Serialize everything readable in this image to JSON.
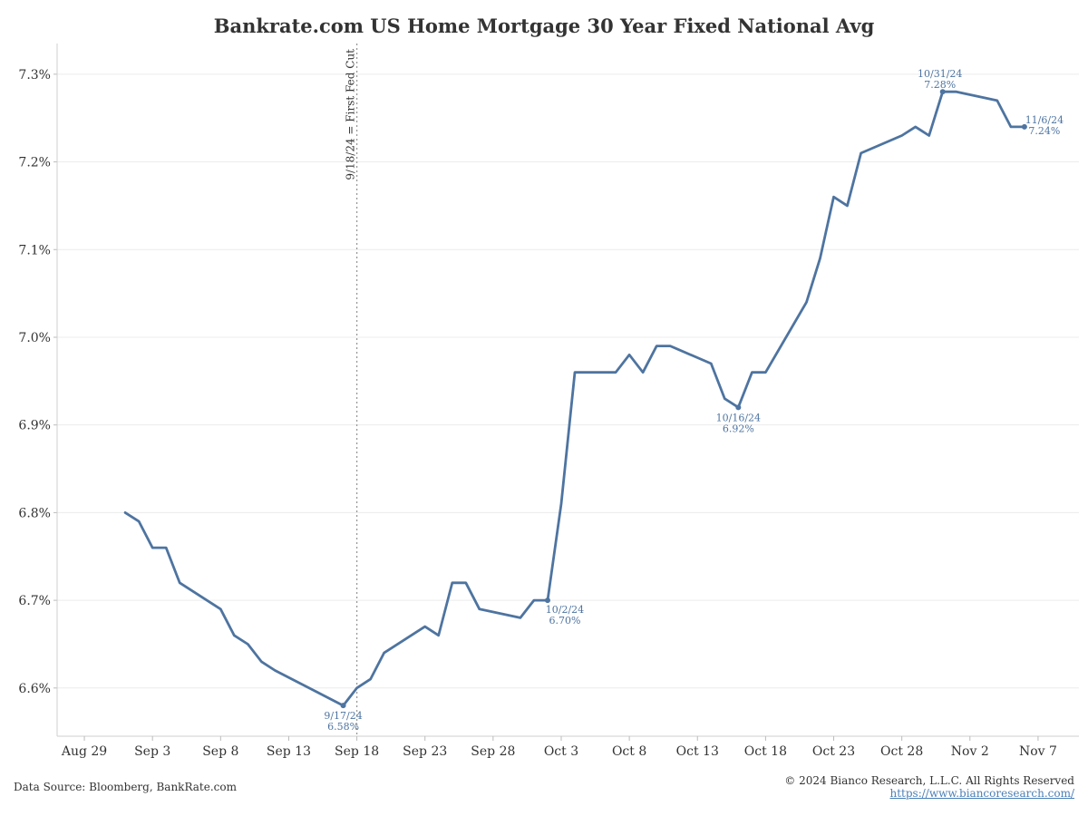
{
  "chart_data": {
    "type": "line",
    "title": "Bankrate.com US Home Mortgage 30 Year Fixed National Avg",
    "xlabel": "",
    "ylabel": "",
    "ylim": [
      6.545,
      7.335
    ],
    "xlim": [
      "2024-08-27",
      "2024-11-10"
    ],
    "grid": true,
    "line_color": "#4e74a0",
    "y_ticks": [
      6.6,
      6.7,
      6.8,
      6.9,
      7.0,
      7.1,
      7.2,
      7.3
    ],
    "y_tick_labels": [
      "6.6%",
      "6.7%",
      "6.8%",
      "6.9%",
      "7.0%",
      "7.1%",
      "7.2%",
      "7.3%"
    ],
    "x_ticks": [
      {
        "date": "2024-08-29",
        "label": "Aug 29"
      },
      {
        "date": "2024-09-03",
        "label": "Sep 3"
      },
      {
        "date": "2024-09-08",
        "label": "Sep 8"
      },
      {
        "date": "2024-09-13",
        "label": "Sep 13"
      },
      {
        "date": "2024-09-18",
        "label": "Sep 18"
      },
      {
        "date": "2024-09-23",
        "label": "Sep 23"
      },
      {
        "date": "2024-09-28",
        "label": "Sep 28"
      },
      {
        "date": "2024-10-03",
        "label": "Oct 3"
      },
      {
        "date": "2024-10-08",
        "label": "Oct 8"
      },
      {
        "date": "2024-10-13",
        "label": "Oct 13"
      },
      {
        "date": "2024-10-18",
        "label": "Oct 18"
      },
      {
        "date": "2024-10-23",
        "label": "Oct 23"
      },
      {
        "date": "2024-10-28",
        "label": "Oct 28"
      },
      {
        "date": "2024-11-02",
        "label": "Nov 2"
      },
      {
        "date": "2024-11-07",
        "label": "Nov 7"
      }
    ],
    "series": [
      {
        "x": [
          "2024-09-01",
          "2024-09-02",
          "2024-09-03",
          "2024-09-04",
          "2024-09-05",
          "2024-09-08",
          "2024-09-09",
          "2024-09-10",
          "2024-09-11",
          "2024-09-12",
          "2024-09-17",
          "2024-09-18",
          "2024-09-19",
          "2024-09-20",
          "2024-09-23",
          "2024-09-24",
          "2024-09-25",
          "2024-09-26",
          "2024-09-27",
          "2024-09-30",
          "2024-10-01",
          "2024-10-02",
          "2024-10-03",
          "2024-10-04",
          "2024-10-07",
          "2024-10-08",
          "2024-10-09",
          "2024-10-10",
          "2024-10-11",
          "2024-10-14",
          "2024-10-15",
          "2024-10-16",
          "2024-10-17",
          "2024-10-18",
          "2024-10-21",
          "2024-10-22",
          "2024-10-23",
          "2024-10-24",
          "2024-10-25",
          "2024-10-28",
          "2024-10-29",
          "2024-10-30",
          "2024-10-31",
          "2024-11-01",
          "2024-11-04",
          "2024-11-05",
          "2024-11-06"
        ],
        "y": [
          6.8,
          6.79,
          6.76,
          6.76,
          6.72,
          6.69,
          6.66,
          6.65,
          6.63,
          6.62,
          6.58,
          6.6,
          6.61,
          6.64,
          6.67,
          6.66,
          6.72,
          6.72,
          6.69,
          6.68,
          6.7,
          6.7,
          6.81,
          6.96,
          6.96,
          6.98,
          6.96,
          6.99,
          6.99,
          6.97,
          6.93,
          6.92,
          6.96,
          6.96,
          7.04,
          7.09,
          7.16,
          7.15,
          7.21,
          7.23,
          7.24,
          7.23,
          7.28,
          7.28,
          7.27,
          7.24,
          7.24
        ]
      }
    ],
    "annotations": [
      {
        "date": "2024-09-17",
        "value": 6.58,
        "date_label": "9/17/24",
        "value_label": "6.58%",
        "placement": "below"
      },
      {
        "date": "2024-10-02",
        "value": 6.7,
        "date_label": "10/2/24",
        "value_label": "6.70%",
        "placement": "below-right"
      },
      {
        "date": "2024-10-16",
        "value": 6.92,
        "date_label": "10/16/24",
        "value_label": "6.92%",
        "placement": "below"
      },
      {
        "date": "2024-10-31",
        "value": 7.28,
        "date_label": "10/31/24",
        "value_label": "7.28%",
        "placement": "above"
      },
      {
        "date": "2024-11-06",
        "value": 7.24,
        "date_label": "11/6/24",
        "value_label": "7.24%",
        "placement": "right"
      }
    ],
    "vline": {
      "date": "2024-09-18",
      "label": "9/18/24 = First Fed Cut"
    }
  },
  "footer": {
    "source": "Data Source: Bloomberg, BankRate.com",
    "copyright": "© 2024 Bianco Research, L.L.C. All Rights Reserved",
    "url": "https://www.biancoresearch.com/"
  }
}
